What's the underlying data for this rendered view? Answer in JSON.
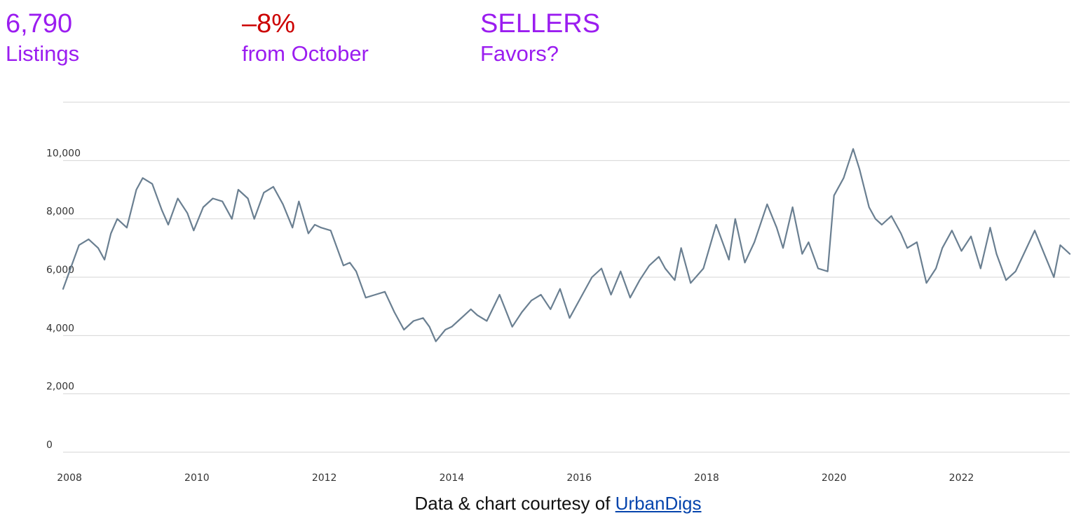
{
  "stats": {
    "listings": {
      "value": "6,790",
      "label": "Listings"
    },
    "change": {
      "value": "–8%",
      "label": "from October"
    },
    "favors": {
      "value": "SELLERS",
      "label": "Favors?"
    }
  },
  "colors": {
    "accent": "#9b1df0",
    "negative": "#cc0000",
    "line": "#6a7f91",
    "grid": "#d6d6d6",
    "link": "#0645ad"
  },
  "credit": {
    "text": "Data & chart courtesy of ",
    "link_text": "UrbanDigs"
  },
  "chart_data": {
    "type": "line",
    "title": "",
    "xlabel": "",
    "ylabel": "",
    "xlim": [
      2007.9,
      2023.7
    ],
    "ylim": [
      0,
      12000
    ],
    "yticks": [
      0,
      2000,
      4000,
      6000,
      8000,
      10000
    ],
    "ytick_labels": [
      "0",
      "2,000",
      "4,000",
      "6,000",
      "8,000",
      "10,000"
    ],
    "xticks": [
      2008,
      2010,
      2012,
      2014,
      2016,
      2018,
      2020,
      2022
    ],
    "xtick_labels": [
      "2008",
      "2010",
      "2012",
      "2014",
      "2016",
      "2018",
      "2020",
      "2022"
    ],
    "grid": true,
    "legend": "none",
    "series": [
      {
        "x": [
          2007.9,
          2008.0,
          2008.15,
          2008.3,
          2008.45,
          2008.55,
          2008.65,
          2008.75,
          2008.9,
          2009.05,
          2009.15,
          2009.3,
          2009.45,
          2009.55,
          2009.7,
          2009.85,
          2009.95,
          2010.1,
          2010.25,
          2010.4,
          2010.55,
          2010.65,
          2010.8,
          2010.9,
          2011.05,
          2011.2,
          2011.35,
          2011.5,
          2011.6,
          2011.75,
          2011.85,
          2011.95,
          2012.1,
          2012.3,
          2012.4,
          2012.5,
          2012.65,
          2012.8,
          2012.95,
          2013.1,
          2013.25,
          2013.4,
          2013.55,
          2013.65,
          2013.75,
          2013.9,
          2014.0,
          2014.1,
          2014.2,
          2014.3,
          2014.4,
          2014.55,
          2014.75,
          2014.95,
          2015.1,
          2015.25,
          2015.4,
          2015.55,
          2015.7,
          2015.85,
          2016.05,
          2016.2,
          2016.35,
          2016.5,
          2016.65,
          2016.8,
          2016.95,
          2017.1,
          2017.25,
          2017.35,
          2017.5,
          2017.6,
          2017.75,
          2017.95,
          2018.15,
          2018.35,
          2018.45,
          2018.6,
          2018.75,
          2018.95,
          2019.1,
          2019.2,
          2019.35,
          2019.5,
          2019.6,
          2019.75,
          2019.9,
          2020.0,
          2020.15,
          2020.3,
          2020.4,
          2020.55,
          2020.65,
          2020.75,
          2020.9,
          2021.05,
          2021.15,
          2021.3,
          2021.45,
          2021.6,
          2021.7,
          2021.85,
          2022.0,
          2022.15,
          2022.3,
          2022.45,
          2022.55,
          2022.7,
          2022.85,
          2023.0,
          2023.15,
          2023.3,
          2023.45,
          2023.55,
          2023.7
        ],
        "y": [
          5600,
          6200,
          7100,
          7300,
          7000,
          6600,
          7500,
          8000,
          7700,
          9000,
          9400,
          9200,
          8300,
          7800,
          8700,
          8200,
          7600,
          8400,
          8700,
          8600,
          8000,
          9000,
          8700,
          8000,
          8900,
          9100,
          8500,
          7700,
          8600,
          7500,
          7800,
          7700,
          7600,
          6400,
          6500,
          6200,
          5300,
          5400,
          5500,
          4800,
          4200,
          4500,
          4600,
          4300,
          3800,
          4200,
          4300,
          4500,
          4700,
          4900,
          4700,
          4500,
          5400,
          4300,
          4800,
          5200,
          5400,
          4900,
          5600,
          4600,
          5400,
          6000,
          6300,
          5400,
          6200,
          5300,
          5900,
          6400,
          6700,
          6300,
          5900,
          7000,
          5800,
          6300,
          7800,
          6600,
          8000,
          6500,
          7200,
          8500,
          7700,
          7000,
          8400,
          6800,
          7200,
          6300,
          6200,
          8800,
          9400,
          10400,
          9700,
          8400,
          8000,
          7800,
          8100,
          7500,
          7000,
          7200,
          5800,
          6300,
          7000,
          7600,
          6900,
          7400,
          6300,
          7700,
          6800,
          5900,
          6200,
          6900,
          7600,
          6800,
          6000,
          7100,
          6800
        ]
      }
    ]
  }
}
